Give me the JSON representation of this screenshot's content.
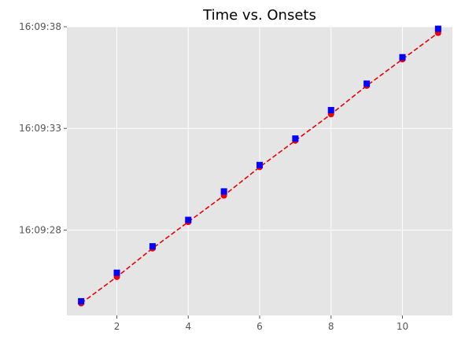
{
  "chart_data": {
    "type": "line",
    "title": "Time vs. Onsets",
    "xlabel": "",
    "ylabel": "",
    "xlim": [
      0.6,
      11.4
    ],
    "ylim": [
      "16:09:23.8",
      "16:09:38"
    ],
    "x_ticks": [
      2,
      4,
      6,
      8,
      10
    ],
    "x_tick_labels": [
      "2",
      "4",
      "6",
      "8",
      "10"
    ],
    "y_ticks": [
      "16:09:28",
      "16:09:33",
      "16:09:38"
    ],
    "y_tick_labels": [
      "16:09:28",
      "16:09:33",
      "16:09:38"
    ],
    "grid": true,
    "background": "#e5e5e5",
    "series": [
      {
        "style": "red dashed line with red circle markers",
        "color": "#e8000b",
        "x": [
          1,
          2,
          3,
          4,
          5,
          6,
          7,
          8,
          9,
          10,
          11
        ],
        "y": [
          "16:09:24.4",
          "16:09:25.7",
          "16:09:27.1",
          "16:09:28.4",
          "16:09:29.7",
          "16:09:31.1",
          "16:09:32.4",
          "16:09:33.7",
          "16:09:35.1",
          "16:09:36.4",
          "16:09:37.7"
        ]
      },
      {
        "style": "blue square markers",
        "color": "#0000ff",
        "x": [
          1,
          2,
          3,
          4,
          5,
          6,
          7,
          8,
          9,
          10,
          11
        ],
        "y": [
          "16:09:24.5",
          "16:09:25.9",
          "16:09:27.2",
          "16:09:28.5",
          "16:09:29.9",
          "16:09:31.2",
          "16:09:32.5",
          "16:09:33.9",
          "16:09:35.2",
          "16:09:36.5",
          "16:09:37.9"
        ]
      }
    ]
  }
}
